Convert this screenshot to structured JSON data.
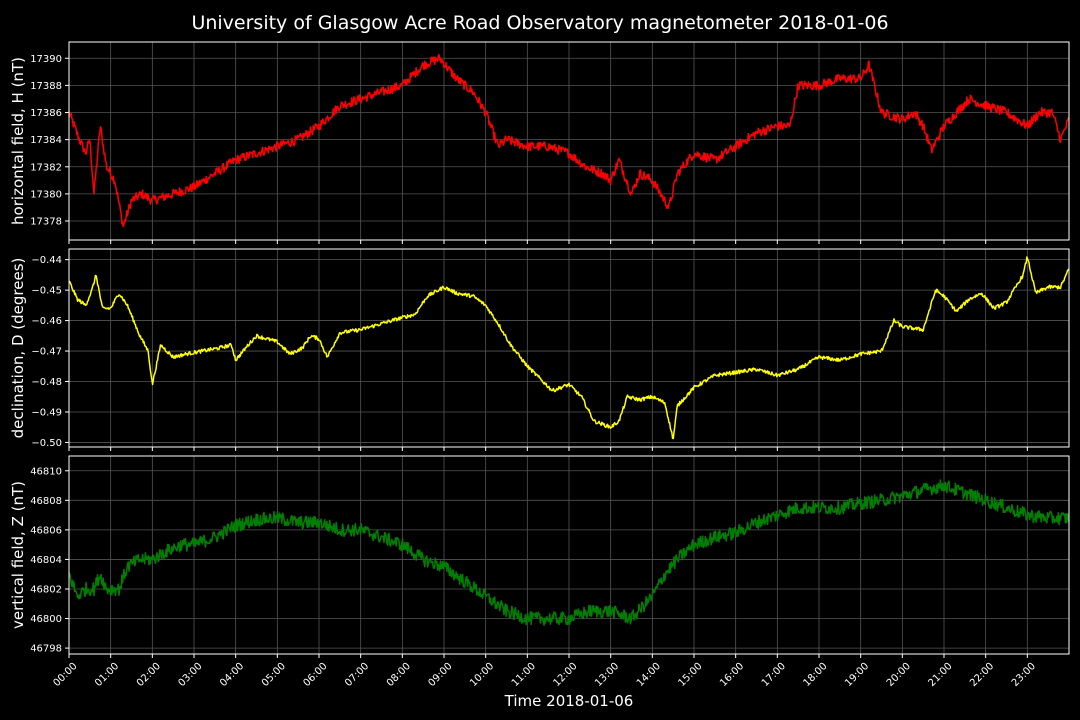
{
  "chart_data": {
    "type": "line",
    "title": "University of Glasgow Acre Road Observatory magnetometer 2018-01-06",
    "xlabel": "Time 2018-01-06",
    "x_ticks": [
      "00:00",
      "01:00",
      "02:00",
      "03:00",
      "04:00",
      "05:00",
      "06:00",
      "07:00",
      "08:00",
      "09:00",
      "10:00",
      "11:00",
      "12:00",
      "13:00",
      "14:00",
      "15:00",
      "16:00",
      "17:00",
      "18:00",
      "19:00",
      "20:00",
      "21:00",
      "22:00",
      "23:00"
    ],
    "xlim_hours": [
      0,
      24
    ],
    "grid": true,
    "background": "#000000",
    "panels": [
      {
        "name": "horizontal",
        "ylabel": "horizontal field, H (nT)",
        "color": "#ff0000",
        "ylim": [
          17376.6,
          17391.2
        ],
        "y_ticks": [
          17378,
          17380,
          17382,
          17384,
          17386,
          17388,
          17390
        ],
        "y_tick_labels": [
          "17378",
          "17380",
          "17382",
          "17384",
          "17386",
          "17388",
          "17390"
        ],
        "noise": 0.35,
        "points": [
          [
            0,
            17386
          ],
          [
            0.25,
            17384
          ],
          [
            0.4,
            17383
          ],
          [
            0.5,
            17384
          ],
          [
            0.6,
            17380
          ],
          [
            0.75,
            17385
          ],
          [
            0.9,
            17382
          ],
          [
            1.1,
            17381
          ],
          [
            1.3,
            17377.6
          ],
          [
            1.5,
            17379.5
          ],
          [
            1.75,
            17380
          ],
          [
            2,
            17379.5
          ],
          [
            2.5,
            17380
          ],
          [
            3,
            17380.5
          ],
          [
            3.5,
            17381.5
          ],
          [
            4,
            17382.5
          ],
          [
            4.5,
            17383
          ],
          [
            5,
            17383.5
          ],
          [
            5.5,
            17384
          ],
          [
            6,
            17385
          ],
          [
            6.5,
            17386.5
          ],
          [
            7,
            17387
          ],
          [
            7.5,
            17387.5
          ],
          [
            8,
            17388
          ],
          [
            8.5,
            17389.5
          ],
          [
            8.9,
            17390
          ],
          [
            9.3,
            17388.5
          ],
          [
            9.7,
            17387.5
          ],
          [
            10,
            17386
          ],
          [
            10.3,
            17383.5
          ],
          [
            10.5,
            17384
          ],
          [
            11,
            17383.5
          ],
          [
            11.5,
            17383.5
          ],
          [
            12,
            17383
          ],
          [
            12.4,
            17382
          ],
          [
            12.8,
            17381.5
          ],
          [
            13,
            17381
          ],
          [
            13.2,
            17382.5
          ],
          [
            13.5,
            17380
          ],
          [
            13.7,
            17381.5
          ],
          [
            14,
            17381
          ],
          [
            14.2,
            17380
          ],
          [
            14.4,
            17379
          ],
          [
            14.6,
            17381.5
          ],
          [
            15,
            17383
          ],
          [
            15.5,
            17382.5
          ],
          [
            16,
            17383.5
          ],
          [
            16.5,
            17384.5
          ],
          [
            17,
            17385
          ],
          [
            17.3,
            17385
          ],
          [
            17.5,
            17388
          ],
          [
            18,
            17388
          ],
          [
            18.5,
            17388.5
          ],
          [
            19,
            17388.5
          ],
          [
            19.2,
            17389.5
          ],
          [
            19.5,
            17386
          ],
          [
            20,
            17385.5
          ],
          [
            20.3,
            17386
          ],
          [
            20.5,
            17385
          ],
          [
            20.7,
            17383.2
          ],
          [
            21,
            17385
          ],
          [
            21.3,
            17386
          ],
          [
            21.6,
            17387
          ],
          [
            22,
            17386.5
          ],
          [
            22.5,
            17386
          ],
          [
            23,
            17385
          ],
          [
            23.3,
            17386
          ],
          [
            23.6,
            17386
          ],
          [
            23.8,
            17384
          ],
          [
            24,
            17385.5
          ]
        ]
      },
      {
        "name": "declination",
        "ylabel": "declination, D (degrees)",
        "color": "#ffff00",
        "ylim": [
          -0.5015,
          -0.4365
        ],
        "y_ticks": [
          -0.5,
          -0.49,
          -0.48,
          -0.47,
          -0.46,
          -0.45,
          -0.44
        ],
        "y_tick_labels": [
          "−0.50",
          "−0.49",
          "−0.48",
          "−0.47",
          "−0.46",
          "−0.45",
          "−0.44"
        ],
        "noise": 0.0006,
        "points": [
          [
            0,
            -0.447
          ],
          [
            0.2,
            -0.453
          ],
          [
            0.4,
            -0.455
          ],
          [
            0.55,
            -0.45
          ],
          [
            0.65,
            -0.445
          ],
          [
            0.8,
            -0.456
          ],
          [
            1,
            -0.456
          ],
          [
            1.2,
            -0.451
          ],
          [
            1.4,
            -0.455
          ],
          [
            1.7,
            -0.465
          ],
          [
            1.9,
            -0.47
          ],
          [
            2.0,
            -0.481
          ],
          [
            2.2,
            -0.468
          ],
          [
            2.5,
            -0.472
          ],
          [
            2.8,
            -0.471
          ],
          [
            3.2,
            -0.47
          ],
          [
            3.6,
            -0.469
          ],
          [
            3.9,
            -0.468
          ],
          [
            4,
            -0.473
          ],
          [
            4.3,
            -0.468
          ],
          [
            4.5,
            -0.465
          ],
          [
            5,
            -0.467
          ],
          [
            5.3,
            -0.471
          ],
          [
            5.6,
            -0.469
          ],
          [
            5.8,
            -0.465
          ],
          [
            6,
            -0.466
          ],
          [
            6.2,
            -0.472
          ],
          [
            6.5,
            -0.464
          ],
          [
            7,
            -0.463
          ],
          [
            7.5,
            -0.461
          ],
          [
            8,
            -0.459
          ],
          [
            8.3,
            -0.458
          ],
          [
            8.6,
            -0.452
          ],
          [
            9,
            -0.449
          ],
          [
            9.3,
            -0.451
          ],
          [
            9.7,
            -0.452
          ],
          [
            10,
            -0.455
          ],
          [
            10.3,
            -0.461
          ],
          [
            10.6,
            -0.468
          ],
          [
            11,
            -0.475
          ],
          [
            11.3,
            -0.479
          ],
          [
            11.6,
            -0.483
          ],
          [
            12,
            -0.481
          ],
          [
            12.3,
            -0.485
          ],
          [
            12.6,
            -0.493
          ],
          [
            13,
            -0.495
          ],
          [
            13.2,
            -0.493
          ],
          [
            13.4,
            -0.485
          ],
          [
            13.7,
            -0.486
          ],
          [
            14,
            -0.485
          ],
          [
            14.3,
            -0.487
          ],
          [
            14.5,
            -0.499
          ],
          [
            14.6,
            -0.488
          ],
          [
            15,
            -0.482
          ],
          [
            15.5,
            -0.478
          ],
          [
            16,
            -0.477
          ],
          [
            16.5,
            -0.476
          ],
          [
            17,
            -0.478
          ],
          [
            17.5,
            -0.476
          ],
          [
            18,
            -0.472
          ],
          [
            18.5,
            -0.473
          ],
          [
            19,
            -0.471
          ],
          [
            19.5,
            -0.47
          ],
          [
            19.8,
            -0.46
          ],
          [
            20,
            -0.462
          ],
          [
            20.5,
            -0.463
          ],
          [
            20.8,
            -0.45
          ],
          [
            21,
            -0.452
          ],
          [
            21.3,
            -0.457
          ],
          [
            21.6,
            -0.453
          ],
          [
            21.9,
            -0.451
          ],
          [
            22.2,
            -0.456
          ],
          [
            22.5,
            -0.454
          ],
          [
            22.9,
            -0.445
          ],
          [
            23,
            -0.439
          ],
          [
            23.2,
            -0.451
          ],
          [
            23.5,
            -0.449
          ],
          [
            23.8,
            -0.449
          ],
          [
            24,
            -0.443
          ]
        ]
      },
      {
        "name": "vertical",
        "ylabel": "vertical field, Z (nT)",
        "color": "#008000",
        "ylim": [
          46797.6,
          46811.0
        ],
        "y_ticks": [
          46798,
          46800,
          46802,
          46804,
          46806,
          46808,
          46810
        ],
        "y_tick_labels": [
          "46798",
          "46800",
          "46802",
          "46804",
          "46806",
          "46808",
          "46810"
        ],
        "noise": 0.45,
        "points": [
          [
            0,
            46803
          ],
          [
            0.2,
            46801.5
          ],
          [
            0.4,
            46802
          ],
          [
            0.6,
            46802
          ],
          [
            0.75,
            46803
          ],
          [
            0.9,
            46802
          ],
          [
            1.2,
            46802
          ],
          [
            1.4,
            46803.5
          ],
          [
            1.7,
            46804
          ],
          [
            2,
            46804
          ],
          [
            2.3,
            46804.5
          ],
          [
            2.7,
            46805
          ],
          [
            3,
            46805
          ],
          [
            3.5,
            46805.5
          ],
          [
            4,
            46806.3
          ],
          [
            4.5,
            46806.7
          ],
          [
            5,
            46806.8
          ],
          [
            5.5,
            46806.5
          ],
          [
            6,
            46806.5
          ],
          [
            6.5,
            46806
          ],
          [
            7,
            46806
          ],
          [
            7.5,
            46805.5
          ],
          [
            8,
            46805
          ],
          [
            8.5,
            46804
          ],
          [
            9,
            46803.5
          ],
          [
            9.5,
            46802.5
          ],
          [
            10,
            46801.5
          ],
          [
            10.5,
            46800.5
          ],
          [
            11,
            46800
          ],
          [
            11.5,
            46800
          ],
          [
            12,
            46800
          ],
          [
            12.5,
            46800.5
          ],
          [
            13,
            46800.5
          ],
          [
            13.5,
            46800
          ],
          [
            14,
            46801.5
          ],
          [
            14.3,
            46803
          ],
          [
            14.6,
            46804
          ],
          [
            15,
            46805
          ],
          [
            15.5,
            46805.5
          ],
          [
            16,
            46805.8
          ],
          [
            16.5,
            46806.5
          ],
          [
            17,
            46807
          ],
          [
            17.5,
            46807.5
          ],
          [
            18,
            46807.5
          ],
          [
            18.5,
            46807.5
          ],
          [
            19,
            46807.8
          ],
          [
            19.5,
            46808
          ],
          [
            20,
            46808.3
          ],
          [
            20.5,
            46808.7
          ],
          [
            21,
            46809
          ],
          [
            21.5,
            46808.5
          ],
          [
            22,
            46808
          ],
          [
            22.5,
            46807.5
          ],
          [
            23,
            46807
          ],
          [
            23.5,
            46806.8
          ],
          [
            24,
            46806.8
          ]
        ]
      }
    ]
  }
}
